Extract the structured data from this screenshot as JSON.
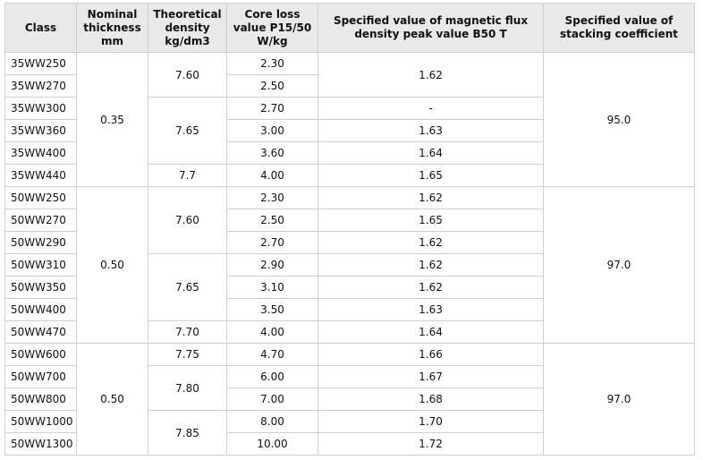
{
  "table": {
    "header": [
      "Class",
      "Nominal thickness mm",
      "Theoretical density kg/dm3",
      "Core loss value P15/50 W/kg",
      "Specified value of magnetic flux density peak value B50 T",
      "Specified value of stacking coefficient"
    ],
    "rows": [
      [
        "35WW250",
        "0.35",
        "7.60",
        "2.30",
        "1.62",
        "95.0"
      ],
      [
        "35WW270",
        "2.50"
      ],
      [
        "35WW300",
        "7.65",
        "2.70",
        "-"
      ],
      [
        "35WW360",
        "3.00",
        "1.63"
      ],
      [
        "35WW400",
        "3.60",
        "1.64"
      ],
      [
        "35WW440",
        "7.7",
        "4.00",
        "1.65"
      ],
      [
        "50WW250",
        "0.50",
        "7.60",
        "2.30",
        "1.62",
        "97.0"
      ],
      [
        "50WW270",
        "2.50",
        "1.65"
      ],
      [
        "50WW290",
        "2.70",
        "1.62"
      ],
      [
        "50WW310",
        "7.65",
        "2.90",
        "1.62"
      ],
      [
        "50WW350",
        "3.10",
        "1.62"
      ],
      [
        "50WW400",
        "3.50",
        "1.63"
      ],
      [
        "50WW470",
        "7.70",
        "4.00",
        "1.64"
      ],
      [
        "50WW600",
        "0.50",
        "7.75",
        "4.70",
        "1.66",
        "97.0"
      ],
      [
        "50WW700",
        "7.80",
        "6.00",
        "1.67"
      ],
      [
        "50WW800",
        "7.00",
        "1.68"
      ],
      [
        "50WW1000",
        "7.85",
        "8.00",
        "1.70"
      ],
      [
        "50WW1300",
        "10.00",
        "1.72"
      ]
    ]
  }
}
